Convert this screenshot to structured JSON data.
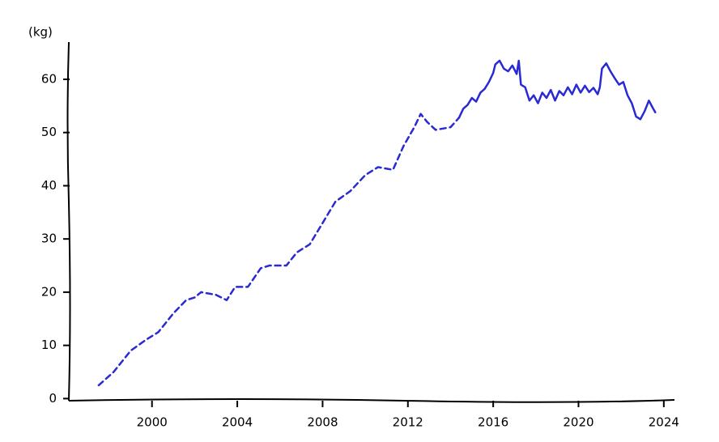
{
  "chart_data": {
    "type": "line",
    "ylabel": "(kg)",
    "xlim": [
      1996.1,
      2024.5
    ],
    "xticks": [
      2000,
      2004,
      2008,
      2012,
      2016,
      2020,
      2024
    ],
    "ylim": [
      -0.4,
      67.3
    ],
    "yticks": [
      0,
      10,
      20,
      30,
      40,
      50,
      60
    ],
    "grid": false,
    "series": [
      {
        "color": "#2a2ad4",
        "style": "dashed",
        "x": [
          1997.5,
          1998.2,
          1999,
          1999.7,
          2000.3,
          2001,
          2001.6,
          2002,
          2002.3,
          2003,
          2003.5,
          2003.9,
          2004.5,
          2005.1,
          2005.5,
          2006.3,
          2006.8,
          2007.4,
          2008,
          2008.6,
          2009.3,
          2010,
          2010.6,
          2011.3,
          2011.8,
          2012.3,
          2012.6,
          2012.9,
          2013.3,
          2014,
          2014.4
        ],
        "values": [
          2.5,
          5,
          9,
          11,
          12.5,
          16,
          18.5,
          19,
          20,
          19.5,
          18.5,
          21,
          21,
          24.5,
          25,
          25,
          27.5,
          29,
          33,
          37,
          39,
          42,
          43.5,
          43,
          47.5,
          51,
          53.5,
          52,
          50.5,
          51,
          52.8
        ]
      },
      {
        "color": "#2a2ad4",
        "style": "solid",
        "x": [
          2014.4,
          2014.6,
          2014.8,
          2015.0,
          2015.2,
          2015.4,
          2015.6,
          2015.8,
          2016.0,
          2016.1,
          2016.3,
          2016.5,
          2016.7,
          2016.9,
          2017.1,
          2017.2,
          2017.3,
          2017.5,
          2017.7,
          2017.9,
          2018.1,
          2018.3,
          2018.5,
          2018.7,
          2018.9,
          2019.1,
          2019.3,
          2019.5,
          2019.7,
          2019.9,
          2020.1,
          2020.3,
          2020.5,
          2020.7,
          2020.9,
          2021.0,
          2021.1,
          2021.3,
          2021.5,
          2021.7,
          2021.9,
          2022.1,
          2022.3,
          2022.5,
          2022.7,
          2022.9,
          2023.1,
          2023.3,
          2023.5,
          2023.6
        ],
        "values": [
          52.8,
          54.5,
          55.2,
          56.5,
          55.8,
          57.5,
          58.2,
          59.5,
          61.2,
          62.8,
          63.5,
          62.0,
          61.5,
          62.6,
          61.0,
          63.5,
          59.0,
          58.5,
          56.0,
          57.0,
          55.5,
          57.5,
          56.5,
          58.0,
          56.0,
          57.8,
          57.0,
          58.5,
          57.2,
          59.0,
          57.5,
          58.8,
          57.6,
          58.4,
          57.2,
          58.5,
          62.0,
          63.0,
          61.5,
          60.2,
          59.0,
          59.5,
          57.0,
          55.5,
          53.0,
          52.5,
          54.0,
          56.0,
          54.5,
          53.8
        ]
      }
    ]
  }
}
